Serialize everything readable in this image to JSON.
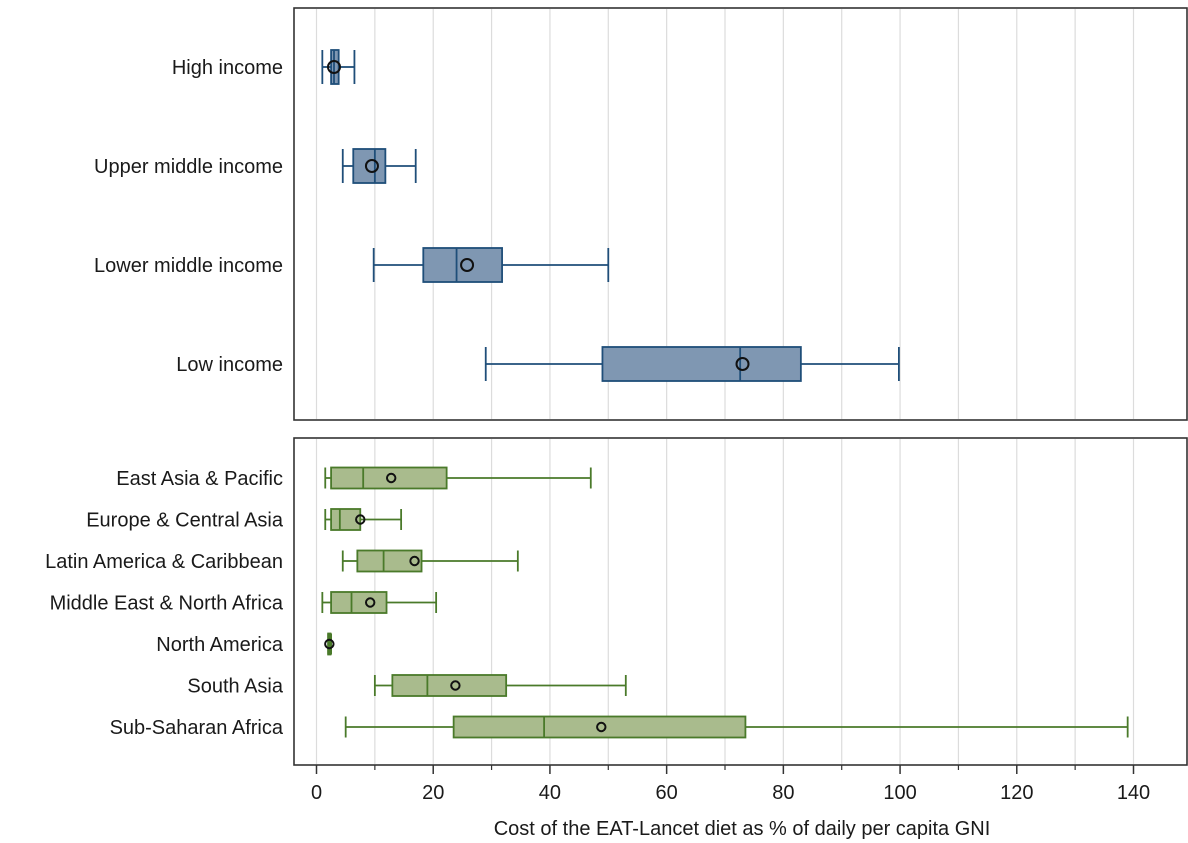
{
  "chart_data": {
    "type": "boxplot",
    "xlabel": "Cost of the EAT-Lancet diet as % of daily per capita GNI",
    "xlim": [
      -2,
      154
    ],
    "xticks": [
      0,
      20,
      40,
      60,
      80,
      100,
      120,
      140
    ],
    "grid": true,
    "box_style": "box with median line, whiskers and hollow circle for mean",
    "panels": [
      {
        "name": "income",
        "fill": "#7f97b2",
        "stroke": "#1f4e79",
        "series": [
          {
            "label": "High income",
            "whisker_low": 1,
            "q1": 2.5,
            "median": 3,
            "q3": 3.8,
            "whisker_high": 6.5,
            "mean": 3
          },
          {
            "label": "Upper middle income",
            "whisker_low": 4.5,
            "q1": 6.3,
            "median": 10,
            "q3": 11.8,
            "whisker_high": 17,
            "mean": 9.5
          },
          {
            "label": "Lower middle income",
            "whisker_low": 9.8,
            "q1": 18.3,
            "median": 24,
            "q3": 31.8,
            "whisker_high": 50,
            "mean": 25.8
          },
          {
            "label": "Low income",
            "whisker_low": 29,
            "q1": 49,
            "median": 72.6,
            "q3": 83,
            "whisker_high": 99.8,
            "mean": 73
          }
        ]
      },
      {
        "name": "region",
        "fill": "#a9bb8d",
        "stroke": "#4a7a2a",
        "series": [
          {
            "label": "East Asia & Pacific",
            "whisker_low": 1.5,
            "q1": 2.5,
            "median": 8,
            "q3": 22.3,
            "whisker_high": 47,
            "mean": 12.8
          },
          {
            "label": "Europe & Central Asia",
            "whisker_low": 1.5,
            "q1": 2.5,
            "median": 4,
            "q3": 7.5,
            "whisker_high": 14.5,
            "mean": 7.5
          },
          {
            "label": "Latin America & Caribbean",
            "whisker_low": 4.5,
            "q1": 7,
            "median": 11.5,
            "q3": 18,
            "whisker_high": 34.5,
            "mean": 16.8
          },
          {
            "label": "Middle East & North Africa",
            "whisker_low": 1,
            "q1": 2.5,
            "median": 6,
            "q3": 12,
            "whisker_high": 20.5,
            "mean": 9.2
          },
          {
            "label": "North America",
            "whisker_low": 2,
            "q1": 2,
            "median": 2.2,
            "q3": 2.4,
            "whisker_high": 2.5,
            "mean": 2.2
          },
          {
            "label": "South Asia",
            "whisker_low": 10,
            "q1": 13,
            "median": 19,
            "q3": 32.5,
            "whisker_high": 53,
            "mean": 23.8
          },
          {
            "label": "Sub-Saharan Africa",
            "whisker_low": 5,
            "q1": 23.5,
            "median": 39,
            "q3": 73.5,
            "whisker_high": 139,
            "mean": 48.8
          }
        ]
      }
    ]
  }
}
